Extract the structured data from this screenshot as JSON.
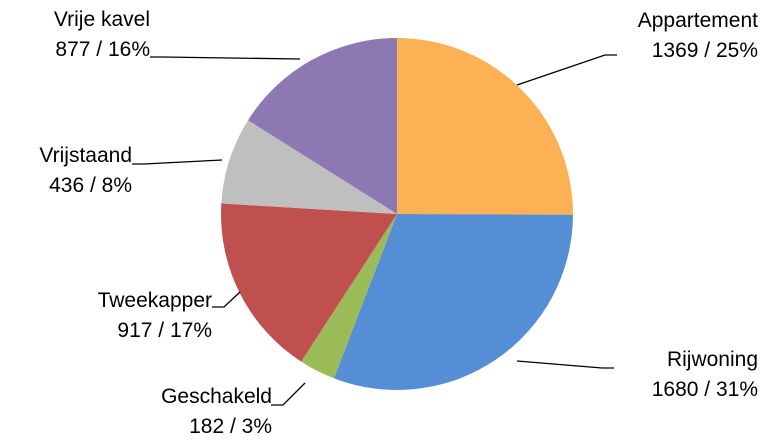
{
  "chart_data": {
    "type": "pie",
    "title": "",
    "start_angle_deg": 0,
    "direction": "clockwise",
    "slices": [
      {
        "name": "Appartement",
        "value": 1369,
        "percent": "25%",
        "value_label": "1369 / 25%",
        "color": "#FDB155"
      },
      {
        "name": "Rijwoning",
        "value": 1680,
        "percent": "31%",
        "value_label": "1680 / 31%",
        "color": "#558ED5"
      },
      {
        "name": "Geschakeld",
        "value": 182,
        "percent": "3%",
        "value_label": "182 / 3%",
        "color": "#9BBB59"
      },
      {
        "name": "Tweekapper",
        "value": 917,
        "percent": "17%",
        "value_label": "917 / 17%",
        "color": "#C0504D"
      },
      {
        "name": "Vrijstaand",
        "value": 436,
        "percent": "8%",
        "value_label": "436 / 8%",
        "color": "#BFBFBF"
      },
      {
        "name": "Vrije kavel",
        "value": 877,
        "percent": "16%",
        "value_label": "877 / 16%",
        "color": "#8E78B4"
      }
    ]
  }
}
